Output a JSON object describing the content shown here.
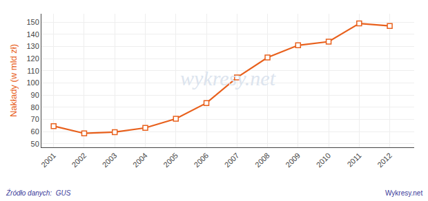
{
  "chart_data": {
    "type": "line",
    "x": [
      2001,
      2002,
      2003,
      2004,
      2005,
      2006,
      2007,
      2008,
      2009,
      2010,
      2011,
      2012
    ],
    "values": [
      64.5,
      58.5,
      59.5,
      63.0,
      70.5,
      83.5,
      104.5,
      121.0,
      131.0,
      134.0,
      149.0,
      147.0
    ],
    "color": "#e8601c",
    "marker": "square",
    "ylabel": "Nakłady (w mld zł)",
    "xlim": [
      2000.6,
      2012.8
    ],
    "xticks": [
      2001,
      2002,
      2003,
      2004,
      2005,
      2006,
      2007,
      2008,
      2009,
      2010,
      2011,
      2012
    ],
    "ylim": [
      47,
      157
    ],
    "yticks": [
      50,
      60,
      70,
      80,
      90,
      100,
      110,
      120,
      130,
      140,
      150
    ],
    "grid": true,
    "annotations": [
      {
        "text": "wykresy.net",
        "color": "#dce4ee"
      },
      {
        "text": "Źródło danych:  GUS",
        "color": "#3a3a9a"
      },
      {
        "text": "Wykresy.net",
        "color": "#3a3a9a"
      }
    ]
  }
}
